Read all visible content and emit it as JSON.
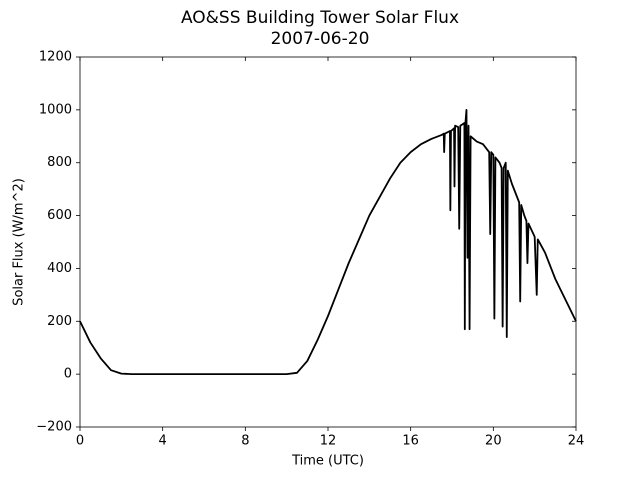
{
  "chart_data": {
    "type": "line",
    "title": "AO&SS Building Tower Solar Flux",
    "subtitle": "2007-06-20",
    "x_label": "Time (UTC)",
    "y_label": "Solar Flux (W/m^2)",
    "x": [
      0,
      0.5,
      1,
      1.5,
      2,
      2.5,
      3,
      4,
      5,
      6,
      7,
      8,
      9,
      10,
      10.5,
      11,
      11.5,
      12,
      12.5,
      13,
      13.5,
      14,
      14.5,
      15,
      15.5,
      16,
      16.5,
      17,
      17.5,
      17.6,
      17.62,
      17.65,
      17.9,
      17.92,
      17.95,
      18.1,
      18.12,
      18.15,
      18.3,
      18.35,
      18.4,
      18.6,
      18.62,
      18.65,
      18.7,
      18.75,
      18.8,
      18.85,
      18.9,
      19.2,
      19.5,
      19.8,
      19.85,
      19.9,
      20,
      20.05,
      20.1,
      20.3,
      20.4,
      20.45,
      20.5,
      20.6,
      20.65,
      20.7,
      20.9,
      21,
      21.25,
      21.3,
      21.35,
      21.5,
      21.6,
      21.65,
      21.7,
      22,
      22.1,
      22.15,
      22.5,
      22.8,
      23,
      23.5,
      24
    ],
    "series": [
      {
        "color": "#000000",
        "values": [
          200,
          120,
          60,
          15,
          2,
          0,
          0,
          0,
          0,
          0,
          0,
          0,
          0,
          0,
          5,
          50,
          130,
          220,
          320,
          420,
          510,
          600,
          670,
          740,
          800,
          840,
          870,
          890,
          905,
          910,
          840,
          910,
          920,
          620,
          920,
          930,
          710,
          940,
          935,
          550,
          940,
          950,
          170,
          950,
          1000,
          440,
          940,
          170,
          900,
          880,
          870,
          840,
          530,
          840,
          830,
          210,
          820,
          800,
          780,
          180,
          780,
          800,
          140,
          770,
          720,
          700,
          650,
          275,
          640,
          600,
          580,
          420,
          570,
          520,
          300,
          510,
          460,
          400,
          360,
          280,
          200
        ]
      }
    ],
    "xlim": [
      0,
      24
    ],
    "ylim": [
      -200,
      1200
    ],
    "xticks": [
      0,
      4,
      8,
      12,
      16,
      20,
      24
    ],
    "yticks": [
      {
        "value": -200,
        "label": "−200"
      },
      0,
      200,
      400,
      600,
      800,
      1000,
      1200
    ]
  }
}
